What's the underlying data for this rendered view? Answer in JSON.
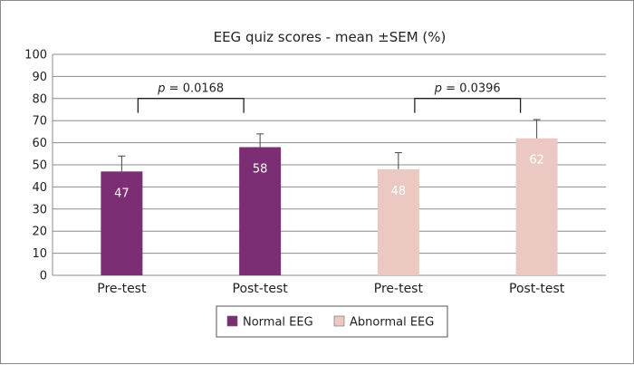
{
  "chart_data": {
    "type": "bar",
    "title": "EEG quiz scores - mean ±SEM (%)",
    "xlabel": "",
    "ylabel": "",
    "ylim": [
      0,
      100
    ],
    "yticks": [
      0,
      10,
      20,
      30,
      40,
      50,
      60,
      70,
      80,
      90,
      100
    ],
    "grid": true,
    "legend_position": "bottom",
    "bars": [
      {
        "category": "Pre-test",
        "series": "Normal EEG",
        "value": 47,
        "label": "47",
        "sem": 7
      },
      {
        "category": "Post-test",
        "series": "Normal EEG",
        "value": 58,
        "label": "58",
        "sem": 6
      },
      {
        "category": "Pre-test",
        "series": "Abnormal EEG",
        "value": 48,
        "label": "48",
        "sem": 7.5
      },
      {
        "category": "Post-test",
        "series": "Abnormal EEG",
        "value": 62,
        "label": "62",
        "sem": 8.5
      }
    ],
    "series": [
      {
        "name": "Normal EEG",
        "color": "#7b2e73"
      },
      {
        "name": "Abnormal EEG",
        "color": "#ecc8c2"
      }
    ],
    "comparisons": [
      {
        "from": 0,
        "to": 1,
        "level": 78,
        "p_symbol": "p",
        "p_value": " = 0.0168"
      },
      {
        "from": 2,
        "to": 3,
        "level": 78,
        "p_symbol": "p",
        "p_value": " = 0.0396"
      }
    ]
  }
}
